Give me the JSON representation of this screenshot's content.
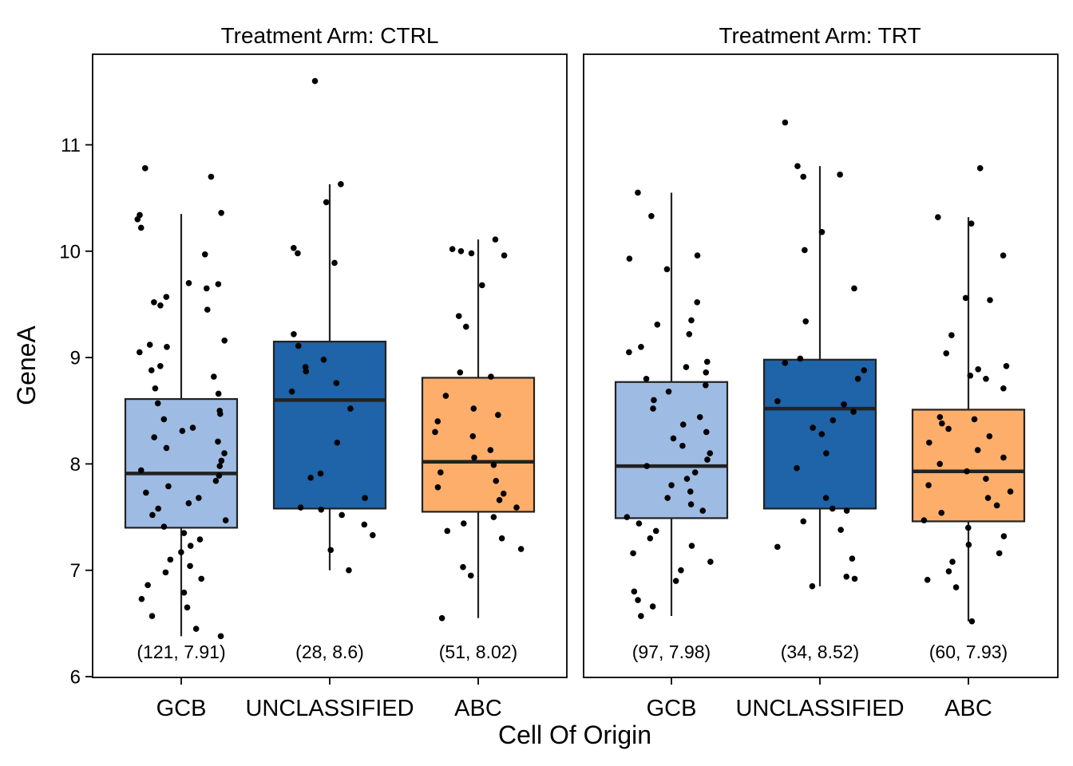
{
  "chart_data": {
    "type": "boxplot",
    "xlabel": "Cell Of Origin",
    "ylabel": "GeneA",
    "ylim": [
      6,
      11.9
    ],
    "y_ticks": [
      6,
      7,
      8,
      9,
      10,
      11
    ],
    "categories": [
      "GCB",
      "UNCLASSIFIED",
      "ABC"
    ],
    "colors": {
      "GCB": "#9EBBE3",
      "UNCLASSIFIED": "#1F63A8",
      "ABC": "#FDAE6B"
    },
    "jitter_points": "shown",
    "panels": [
      {
        "strip_label": "Treatment Arm: CTRL",
        "boxes": [
          {
            "category": "GCB",
            "whisker_low": 6.38,
            "q1": 7.4,
            "median": 7.91,
            "q3": 8.61,
            "whisker_high": 10.35,
            "annotation": "(121, 7.91)",
            "points": [
              10.78,
              10.7,
              10.36,
              10.34,
              10.3,
              10.22,
              9.97,
              9.7,
              9.69,
              9.65,
              9.57,
              9.52,
              9.49,
              9.45,
              9.16,
              9.12,
              9.1,
              9.05,
              8.92,
              8.88,
              8.82,
              8.71,
              8.66,
              8.57,
              8.5,
              8.47,
              8.42,
              8.34,
              8.31,
              8.25,
              8.21,
              8.15,
              8.1,
              8.03,
              7.98,
              7.94,
              7.89,
              7.84,
              7.79,
              7.73,
              7.68,
              7.63,
              7.58,
              7.52,
              7.47,
              7.41,
              7.35,
              7.29,
              7.23,
              7.17,
              7.1,
              7.04,
              6.98,
              6.92,
              6.86,
              6.79,
              6.73,
              6.65,
              6.57,
              6.45,
              6.38
            ]
          },
          {
            "category": "UNCLASSIFIED",
            "whisker_low": 7.0,
            "q1": 7.58,
            "median": 8.6,
            "q3": 9.15,
            "whisker_high": 10.63,
            "annotation": "(28, 8.6)",
            "points": [
              11.6,
              10.63,
              10.46,
              10.03,
              9.98,
              9.89,
              9.22,
              9.11,
              8.98,
              8.91,
              8.87,
              8.76,
              8.68,
              8.52,
              8.2,
              7.91,
              7.87,
              7.68,
              7.59,
              7.57,
              7.52,
              7.43,
              7.33,
              7.19,
              7.0
            ]
          },
          {
            "category": "ABC",
            "whisker_low": 6.55,
            "q1": 7.55,
            "median": 8.02,
            "q3": 8.81,
            "whisker_high": 10.11,
            "annotation": "(51, 8.02)",
            "points": [
              10.11,
              10.02,
              10.0,
              9.98,
              9.96,
              9.68,
              9.39,
              9.29,
              8.86,
              8.82,
              8.64,
              8.52,
              8.46,
              8.4,
              8.3,
              8.26,
              8.13,
              8.06,
              7.99,
              7.92,
              7.84,
              7.78,
              7.72,
              7.66,
              7.59,
              7.5,
              7.44,
              7.37,
              7.3,
              7.2,
              7.03,
              6.95,
              6.55
            ]
          }
        ]
      },
      {
        "strip_label": "Treatment Arm: TRT",
        "boxes": [
          {
            "category": "GCB",
            "whisker_low": 6.57,
            "q1": 7.49,
            "median": 7.98,
            "q3": 8.77,
            "whisker_high": 10.55,
            "annotation": "(97, 7.98)",
            "points": [
              10.55,
              10.33,
              9.96,
              9.93,
              9.83,
              9.52,
              9.35,
              9.31,
              9.22,
              9.1,
              9.05,
              8.96,
              8.91,
              8.86,
              8.8,
              8.74,
              8.68,
              8.6,
              8.52,
              8.44,
              8.37,
              8.3,
              8.24,
              8.17,
              8.1,
              8.04,
              7.98,
              7.92,
              7.86,
              7.8,
              7.74,
              7.68,
              7.62,
              7.56,
              7.5,
              7.44,
              7.37,
              7.3,
              7.23,
              7.16,
              7.08,
              7.0,
              6.9,
              6.8,
              6.72,
              6.66,
              6.57
            ]
          },
          {
            "category": "UNCLASSIFIED",
            "whisker_low": 6.85,
            "q1": 7.58,
            "median": 8.52,
            "q3": 8.98,
            "whisker_high": 10.8,
            "annotation": "(34, 8.52)",
            "points": [
              11.21,
              10.8,
              10.72,
              10.7,
              10.18,
              10.01,
              9.65,
              9.34,
              8.99,
              8.95,
              8.88,
              8.8,
              8.59,
              8.56,
              8.49,
              8.41,
              8.34,
              8.28,
              8.1,
              7.96,
              7.68,
              7.58,
              7.56,
              7.46,
              7.38,
              7.22,
              7.11,
              6.94,
              6.92,
              6.85
            ]
          },
          {
            "category": "ABC",
            "whisker_low": 6.52,
            "q1": 7.46,
            "median": 7.93,
            "q3": 8.51,
            "whisker_high": 10.32,
            "annotation": "(60, 7.93)",
            "points": [
              10.78,
              10.32,
              10.26,
              9.96,
              9.56,
              9.54,
              9.21,
              9.04,
              8.92,
              8.89,
              8.83,
              8.8,
              8.71,
              8.44,
              8.42,
              8.38,
              8.33,
              8.26,
              8.2,
              8.13,
              8.06,
              8.0,
              7.93,
              7.86,
              7.8,
              7.74,
              7.68,
              7.61,
              7.54,
              7.47,
              7.4,
              7.32,
              7.24,
              7.16,
              7.08,
              6.99,
              6.91,
              6.84,
              6.52
            ]
          }
        ]
      }
    ]
  }
}
